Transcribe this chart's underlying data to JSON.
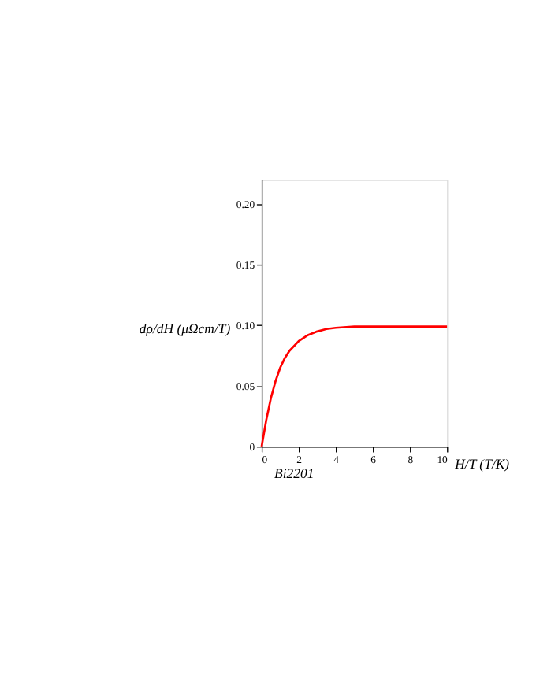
{
  "chart_data": {
    "type": "line",
    "xlabel": "H/T (T/K)",
    "ylabel": "dρ/dH (μΩcm/T)",
    "annotations": [
      "Bi2201"
    ],
    "x": [
      0,
      0.25,
      0.5,
      0.75,
      1,
      1.25,
      1.5,
      2,
      2.5,
      3,
      3.5,
      4,
      5,
      6,
      7,
      8,
      9,
      10
    ],
    "series": [
      {
        "color": "#ff0000",
        "values": [
          0,
          0.022,
          0.04,
          0.054,
          0.065,
          0.073,
          0.079,
          0.087,
          0.092,
          0.095,
          0.097,
          0.098,
          0.099,
          0.099,
          0.099,
          0.099,
          0.099,
          0.099
        ]
      }
    ],
    "xlim": [
      0,
      10
    ],
    "ylim": [
      0,
      0.22
    ],
    "xticks": [
      0,
      2,
      4,
      6,
      8,
      10
    ],
    "yticks": [
      0,
      0.05,
      {
        "value": 0.1,
        "label": "0.10"
      },
      0.15,
      {
        "value": 0.2,
        "label": "0.20"
      }
    ],
    "grid": false,
    "legend": false,
    "marker": "none",
    "line_style": "solid"
  }
}
